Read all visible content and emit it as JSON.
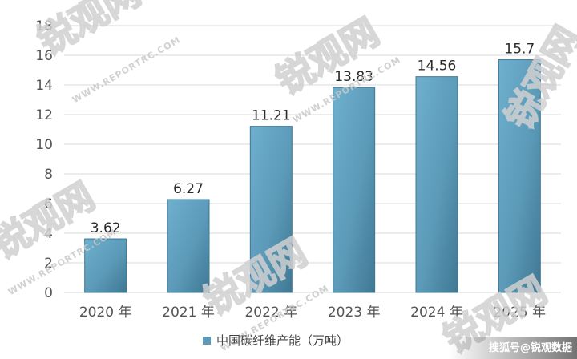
{
  "chart_data": {
    "type": "bar",
    "categories": [
      "2020 年",
      "2021 年",
      "2022 年",
      "2023 年",
      "2024 年",
      "2025 年"
    ],
    "series": [
      {
        "name": "中国碳纤维产能（万吨）",
        "values": [
          3.62,
          6.27,
          11.21,
          13.83,
          14.56,
          15.7
        ]
      }
    ],
    "data_labels": [
      "3.62",
      "6.27",
      "11.21",
      "13.83",
      "14.56",
      "15.7"
    ],
    "y_ticks": [
      "0",
      "2",
      "4",
      "6",
      "8",
      "10",
      "12",
      "14",
      "16",
      "18"
    ],
    "ylim": [
      0,
      18
    ],
    "grid": true,
    "legend_position": "bottom-center",
    "bar_color": "#5b9ab8",
    "bar_color_light": "#7fb8d3",
    "bar_color_dark": "#3f7893",
    "title": "",
    "xlabel": "",
    "ylabel": ""
  },
  "watermark": {
    "brand": "锐观网",
    "url": "WWW.REPORTRC.COM",
    "credit": "搜狐号@锐观数据"
  }
}
